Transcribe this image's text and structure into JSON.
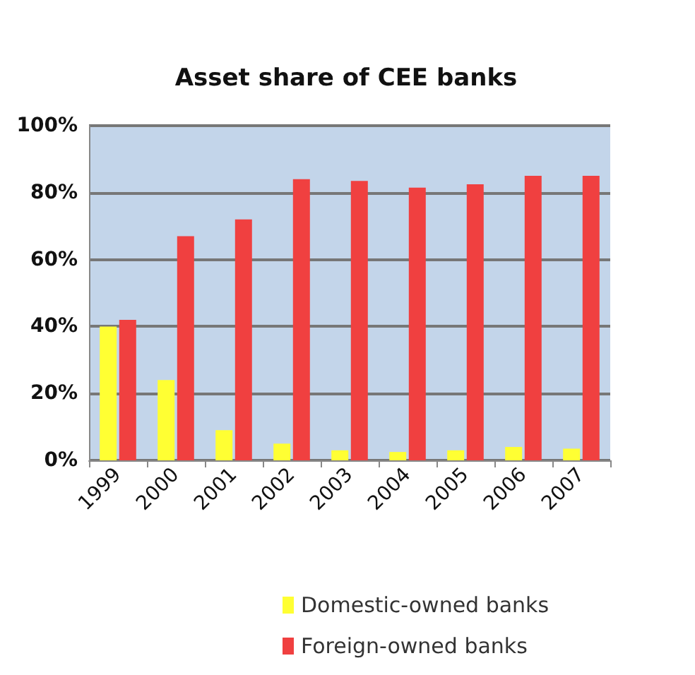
{
  "chart_data": {
    "type": "bar",
    "title": "Asset share of CEE banks",
    "categories": [
      "1999",
      "2000",
      "2001",
      "2002",
      "2003",
      "2004",
      "2005",
      "2006",
      "2007"
    ],
    "series": [
      {
        "name": "Domestic-owned banks",
        "color": "#ffff33",
        "values": [
          40,
          24,
          9,
          5,
          3,
          2.5,
          3,
          4,
          3.5
        ]
      },
      {
        "name": "Foreign-owned banks",
        "color": "#f04040",
        "values": [
          42,
          67,
          72,
          84,
          83.5,
          81.5,
          82.5,
          85,
          85
        ]
      }
    ],
    "ylim": [
      0,
      100
    ],
    "yticks": [
      {
        "value": 0,
        "label": "0%"
      },
      {
        "value": 20,
        "label": "20%"
      },
      {
        "value": 40,
        "label": "40%"
      },
      {
        "value": 60,
        "label": "60%"
      },
      {
        "value": 80,
        "label": "80%"
      },
      {
        "value": 100,
        "label": "100%"
      }
    ],
    "grid": "y",
    "legend": "bottom"
  }
}
